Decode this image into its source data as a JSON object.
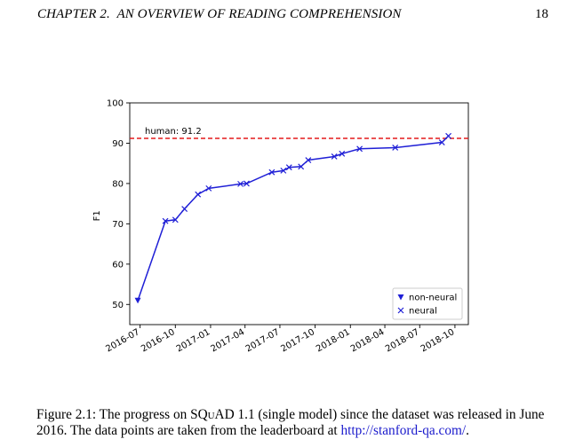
{
  "header": {
    "chapter_label": "CHAPTER 2.",
    "chapter_title": "AN OVERVIEW OF READING COMPREHENSION",
    "page_number": "18"
  },
  "figure": {
    "caption_prefix": "Figure 2.1: The progress on ",
    "caption_dataset": "SQuAD",
    "caption_middle": " 1.1 (single model) since the dataset was released in June 2016. The data points are taken from the leaderboard at ",
    "caption_link": "http://stanford-qa.com/",
    "caption_suffix": "."
  },
  "chart_data": {
    "type": "line",
    "ylabel": "F1",
    "xlabel": "",
    "title": "",
    "ylim": [
      45,
      100
    ],
    "xlim": [
      "2016-06-04",
      "2018-11-05"
    ],
    "yticks": [
      50,
      60,
      70,
      80,
      90,
      100
    ],
    "xticks": [
      "2016-07",
      "2016-10",
      "2017-01",
      "2017-04",
      "2017-07",
      "2017-10",
      "2018-01",
      "2018-04",
      "2018-07",
      "2018-10"
    ],
    "grid": false,
    "legend_position": "bottom-right",
    "reference_line": {
      "value": 91.2,
      "label": "human: 91.2",
      "color": "#e41a1c",
      "style": "dashed"
    },
    "line_color": "#1f1fd6",
    "series": [
      {
        "name": "non-neural",
        "marker": "triangle-down",
        "x": [
          "2016-06-25"
        ],
        "y": [
          51.0
        ]
      },
      {
        "name": "neural",
        "marker": "x",
        "x": [
          "2016-09-05",
          "2016-10-01",
          "2016-10-25",
          "2016-11-29",
          "2016-12-27",
          "2017-03-20",
          "2017-04-05",
          "2017-06-10",
          "2017-07-10",
          "2017-07-25",
          "2017-08-25",
          "2017-09-13",
          "2017-11-20",
          "2017-12-10",
          "2018-01-25",
          "2018-04-28",
          "2018-08-28",
          "2018-09-14"
        ],
        "y": [
          70.7,
          71.0,
          73.7,
          77.3,
          78.8,
          79.9,
          80.0,
          82.8,
          83.2,
          84.0,
          84.2,
          85.8,
          86.7,
          87.4,
          88.6,
          88.9,
          90.2,
          91.8
        ]
      }
    ]
  }
}
